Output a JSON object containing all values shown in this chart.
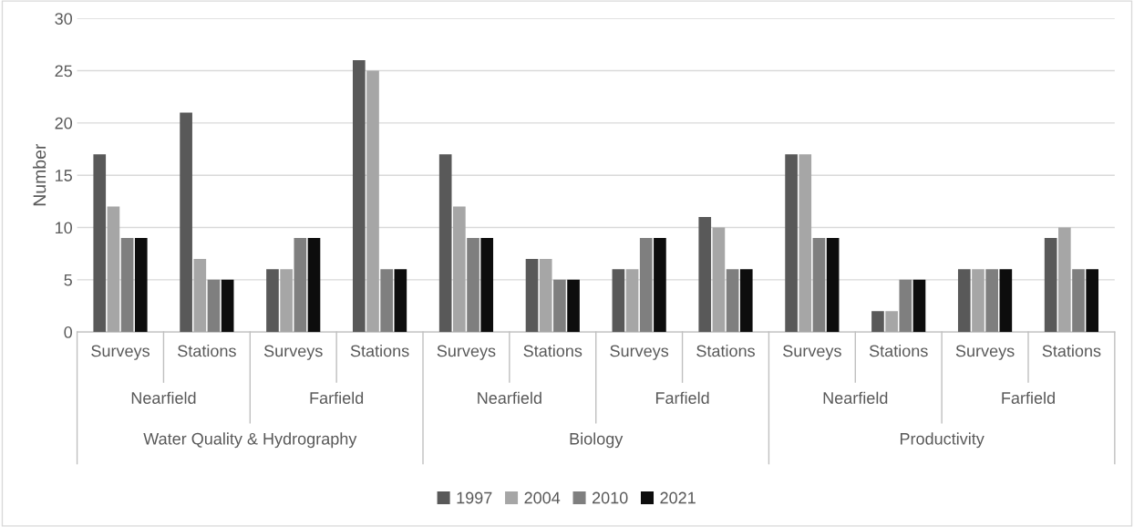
{
  "chart_data": {
    "type": "bar",
    "ylabel": "Number",
    "categories": [
      "Surveys",
      "Stations",
      "Surveys",
      "Stations",
      "Surveys",
      "Stations",
      "Surveys",
      "Stations",
      "Surveys",
      "Stations",
      "Surveys",
      "Stations"
    ],
    "annotations": [
      "Nearfield",
      "Farfield",
      "Nearfield",
      "Farfield",
      "Nearfield",
      "Farfield",
      "Water Quality & Hydrography",
      "Biology",
      "Productivity"
    ],
    "series": [
      {
        "name": "1997",
        "color": "#595959",
        "values": [
          17,
          21,
          6,
          26,
          17,
          7,
          6,
          11,
          17,
          2,
          6,
          9
        ]
      },
      {
        "name": "2004",
        "color": "#a6a6a6",
        "values": [
          12,
          7,
          6,
          25,
          12,
          7,
          6,
          10,
          17,
          2,
          6,
          10
        ]
      },
      {
        "name": "2010",
        "color": "#7f7f7f",
        "values": [
          9,
          5,
          9,
          6,
          9,
          5,
          9,
          6,
          9,
          5,
          6,
          6
        ]
      },
      {
        "name": "2021",
        "color": "#0d0d0d",
        "values": [
          9,
          5,
          9,
          6,
          9,
          5,
          9,
          6,
          9,
          5,
          6,
          6
        ]
      }
    ],
    "ylim": [
      0,
      30
    ],
    "yticks": [
      0,
      5,
      10,
      15,
      20,
      25,
      30
    ],
    "grid": "y",
    "legend": "bottom"
  }
}
